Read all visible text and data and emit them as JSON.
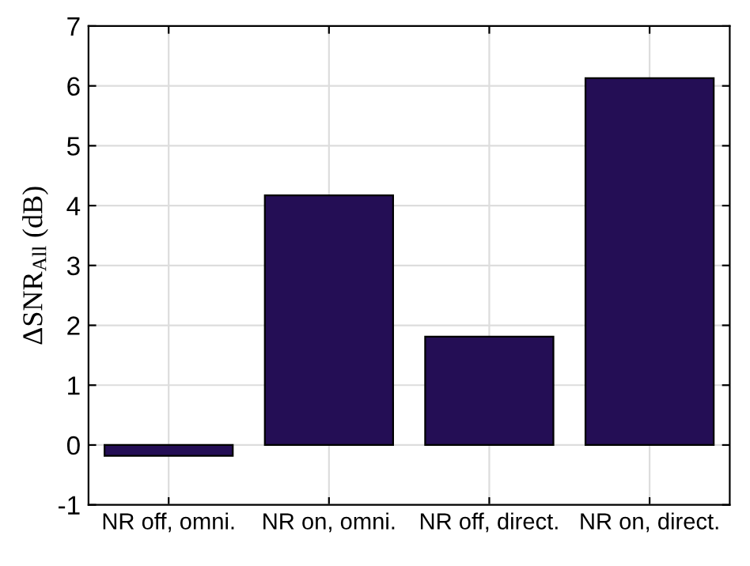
{
  "chart_data": {
    "type": "bar",
    "ylabel": "ΔSNR$_{All}$ (dB)",
    "categories": [
      "NR off, omni.",
      "NR on, omni.",
      "NR off, direct.",
      "NR on, direct."
    ],
    "values": [
      -0.18,
      4.17,
      1.81,
      6.13
    ],
    "color": "#240e55",
    "ylim": [
      -1,
      7
    ],
    "yticks": [
      -1,
      0,
      1,
      2,
      3,
      4,
      5,
      6,
      7
    ],
    "grid": true
  }
}
